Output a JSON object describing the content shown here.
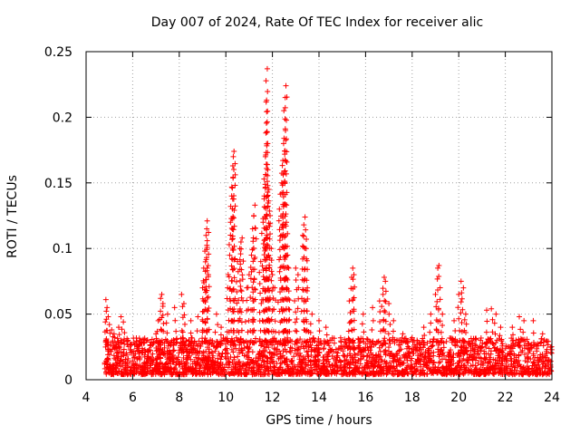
{
  "chart_data": {
    "type": "scatter",
    "title": "Day 007 of 2024, Rate Of TEC Index for receiver alic",
    "xlabel": "GPS time / hours",
    "ylabel": "ROTI / TECUs",
    "xlim": [
      4,
      24
    ],
    "ylim": [
      0,
      0.25
    ],
    "xticks": [
      4,
      6,
      8,
      10,
      12,
      14,
      16,
      18,
      20,
      22,
      24
    ],
    "xtick_labels": [
      "4",
      "6",
      "8",
      "10",
      "12",
      "14",
      "16",
      "18",
      "20",
      "22",
      "24"
    ],
    "yticks": [
      0,
      0.05,
      0.1,
      0.15,
      0.2,
      0.25
    ],
    "ytick_labels": [
      "0",
      "0.05",
      "0.1",
      "0.15",
      "0.2",
      "0.25"
    ],
    "grid": true,
    "marker": "+",
    "color": "#ff0000",
    "baseline": {
      "x_start": 4.8,
      "x_end": 24.0,
      "y_min": 0.004,
      "y_max": 0.032,
      "note": "dense band of ROTI values between roughly 0.005 and 0.03 TECU/s across the whole observation window"
    },
    "series": [
      {
        "name": "ROTI",
        "points": [
          [
            4.85,
            0.061
          ],
          [
            4.9,
            0.055
          ],
          [
            4.95,
            0.048
          ],
          [
            5.0,
            0.042
          ],
          [
            5.1,
            0.038
          ],
          [
            5.2,
            0.035
          ],
          [
            5.4,
            0.04
          ],
          [
            5.5,
            0.048
          ],
          [
            5.6,
            0.044
          ],
          [
            5.8,
            0.03
          ],
          [
            6.2,
            0.025
          ],
          [
            6.5,
            0.028
          ],
          [
            7.0,
            0.035
          ],
          [
            7.1,
            0.045
          ],
          [
            7.2,
            0.062
          ],
          [
            7.25,
            0.065
          ],
          [
            7.3,
            0.058
          ],
          [
            7.5,
            0.05
          ],
          [
            7.8,
            0.055
          ],
          [
            8.1,
            0.065
          ],
          [
            8.2,
            0.058
          ],
          [
            8.5,
            0.045
          ],
          [
            8.8,
            0.048
          ],
          [
            9.0,
            0.07
          ],
          [
            9.05,
            0.085
          ],
          [
            9.1,
            0.098
          ],
          [
            9.15,
            0.11
          ],
          [
            9.18,
            0.115
          ],
          [
            9.2,
            0.121
          ],
          [
            9.25,
            0.08
          ],
          [
            9.6,
            0.05
          ],
          [
            9.8,
            0.04
          ],
          [
            10.1,
            0.08
          ],
          [
            10.2,
            0.12
          ],
          [
            10.25,
            0.14
          ],
          [
            10.3,
            0.163
          ],
          [
            10.32,
            0.17
          ],
          [
            10.35,
            0.174
          ],
          [
            10.5,
            0.09
          ],
          [
            10.6,
            0.1
          ],
          [
            10.65,
            0.105
          ],
          [
            10.7,
            0.108
          ],
          [
            10.9,
            0.07
          ],
          [
            11.0,
            0.08
          ],
          [
            11.1,
            0.095
          ],
          [
            11.15,
            0.115
          ],
          [
            11.2,
            0.125
          ],
          [
            11.25,
            0.133
          ],
          [
            11.5,
            0.09
          ],
          [
            11.6,
            0.12
          ],
          [
            11.65,
            0.14
          ],
          [
            11.7,
            0.17
          ],
          [
            11.72,
            0.188
          ],
          [
            11.75,
            0.213
          ],
          [
            11.78,
            0.237
          ],
          [
            11.8,
            0.16
          ],
          [
            11.85,
            0.145
          ],
          [
            11.9,
            0.125
          ],
          [
            11.95,
            0.1
          ],
          [
            12.0,
            0.08
          ],
          [
            12.1,
            0.07
          ],
          [
            12.3,
            0.13
          ],
          [
            12.4,
            0.15
          ],
          [
            12.45,
            0.167
          ],
          [
            12.48,
            0.18
          ],
          [
            12.5,
            0.184
          ],
          [
            12.55,
            0.215
          ],
          [
            12.58,
            0.224
          ],
          [
            12.6,
            0.12
          ],
          [
            12.65,
            0.095
          ],
          [
            12.7,
            0.085
          ],
          [
            13.0,
            0.085
          ],
          [
            13.1,
            0.08
          ],
          [
            13.3,
            0.11
          ],
          [
            13.35,
            0.118
          ],
          [
            13.4,
            0.124
          ],
          [
            13.45,
            0.1
          ],
          [
            13.5,
            0.07
          ],
          [
            13.7,
            0.05
          ],
          [
            14.0,
            0.045
          ],
          [
            14.3,
            0.04
          ],
          [
            15.3,
            0.06
          ],
          [
            15.4,
            0.078
          ],
          [
            15.45,
            0.085
          ],
          [
            15.5,
            0.08
          ],
          [
            15.9,
            0.05
          ],
          [
            16.3,
            0.055
          ],
          [
            16.6,
            0.06
          ],
          [
            16.75,
            0.065
          ],
          [
            16.8,
            0.078
          ],
          [
            16.85,
            0.075
          ],
          [
            17.0,
            0.058
          ],
          [
            17.2,
            0.045
          ],
          [
            17.6,
            0.035
          ],
          [
            18.0,
            0.032
          ],
          [
            18.5,
            0.04
          ],
          [
            18.8,
            0.05
          ],
          [
            19.0,
            0.065
          ],
          [
            19.1,
            0.085
          ],
          [
            19.15,
            0.087
          ],
          [
            19.3,
            0.05
          ],
          [
            19.8,
            0.045
          ],
          [
            20.0,
            0.065
          ],
          [
            20.1,
            0.075
          ],
          [
            20.2,
            0.07
          ],
          [
            20.3,
            0.05
          ],
          [
            21.2,
            0.053
          ],
          [
            21.4,
            0.054
          ],
          [
            21.6,
            0.05
          ],
          [
            21.8,
            0.04
          ],
          [
            22.3,
            0.04
          ],
          [
            22.6,
            0.048
          ],
          [
            22.8,
            0.045
          ],
          [
            23.2,
            0.045
          ],
          [
            23.6,
            0.035
          ]
        ]
      }
    ]
  }
}
